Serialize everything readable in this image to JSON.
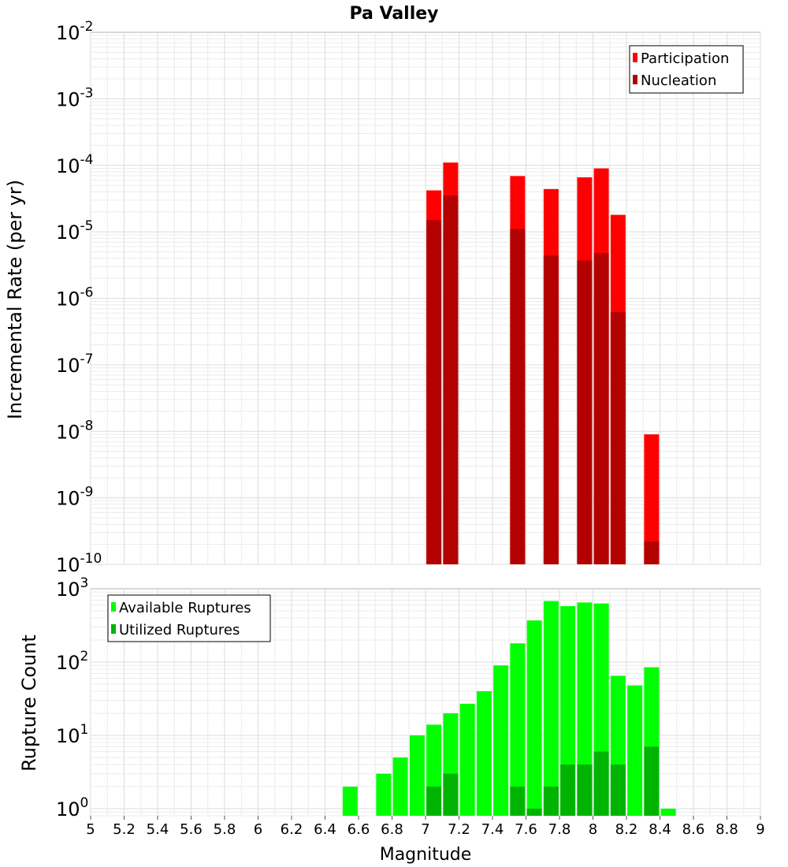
{
  "title": "Pa Valley",
  "xlabel": "Magnitude",
  "chart_data": [
    {
      "type": "bar",
      "title": "Pa Valley",
      "ylabel": "Incremental Rate (per yr)",
      "yscale": "log",
      "ylim": [
        1e-10,
        0.01
      ],
      "xlim": [
        5,
        9
      ],
      "grid": true,
      "legend_position": "top-right",
      "series": [
        {
          "name": "Participation",
          "color": "#ff0000",
          "x": [
            7.05,
            7.15,
            7.55,
            7.75,
            7.95,
            8.05,
            8.15,
            8.35
          ],
          "values": [
            4.2e-05,
            0.00011,
            6.9e-05,
            4.4e-05,
            6.6e-05,
            9e-05,
            1.8e-05,
            9e-09
          ]
        },
        {
          "name": "Nucleation",
          "color": "#b30000",
          "x": [
            7.05,
            7.15,
            7.55,
            7.75,
            7.95,
            8.05,
            8.15,
            8.35
          ],
          "values": [
            1.5e-05,
            3.5e-05,
            1.1e-05,
            4.4e-06,
            3.7e-06,
            4.8e-06,
            6.2e-07,
            2.2e-10
          ]
        }
      ]
    },
    {
      "type": "bar",
      "ylabel": "Rupture Count",
      "yscale": "log",
      "ylim": [
        0.8,
        1000
      ],
      "xlim": [
        5,
        9
      ],
      "grid": true,
      "legend_position": "top-left",
      "series": [
        {
          "name": "Available Ruptures",
          "color": "#00ff00",
          "x": [
            6.55,
            6.75,
            6.85,
            6.95,
            7.05,
            7.15,
            7.25,
            7.35,
            7.45,
            7.55,
            7.65,
            7.75,
            7.85,
            7.95,
            8.05,
            8.15,
            8.25,
            8.35,
            8.45
          ],
          "values": [
            2,
            3,
            5,
            10,
            14,
            20,
            27,
            40,
            90,
            180,
            370,
            680,
            580,
            650,
            630,
            65,
            48,
            85,
            1
          ]
        },
        {
          "name": "Utilized Ruptures",
          "color": "#00b300",
          "x": [
            7.05,
            7.15,
            7.55,
            7.65,
            7.75,
            7.85,
            7.95,
            8.05,
            8.15,
            8.35
          ],
          "values": [
            2,
            3,
            2,
            1,
            2,
            4,
            4,
            6,
            4,
            7
          ]
        }
      ]
    }
  ],
  "xticks": [
    "5",
    "5.2",
    "5.4",
    "5.6",
    "5.8",
    "6",
    "6.2",
    "6.4",
    "6.6",
    "6.8",
    "7",
    "7.2",
    "7.4",
    "7.6",
    "7.8",
    "8",
    "8.2",
    "8.4",
    "8.6",
    "8.8",
    "9"
  ],
  "top_yticks": [
    {
      "base": "10",
      "exp": "-2"
    },
    {
      "base": "10",
      "exp": "-3"
    },
    {
      "base": "10",
      "exp": "-4"
    },
    {
      "base": "10",
      "exp": "-5"
    },
    {
      "base": "10",
      "exp": "-6"
    },
    {
      "base": "10",
      "exp": "-7"
    },
    {
      "base": "10",
      "exp": "-8"
    },
    {
      "base": "10",
      "exp": "-9"
    },
    {
      "base": "10",
      "exp": "-10"
    }
  ],
  "bottom_yticks": [
    {
      "base": "10",
      "exp": "3"
    },
    {
      "base": "10",
      "exp": "2"
    },
    {
      "base": "10",
      "exp": "1"
    },
    {
      "base": "10",
      "exp": "0"
    }
  ]
}
